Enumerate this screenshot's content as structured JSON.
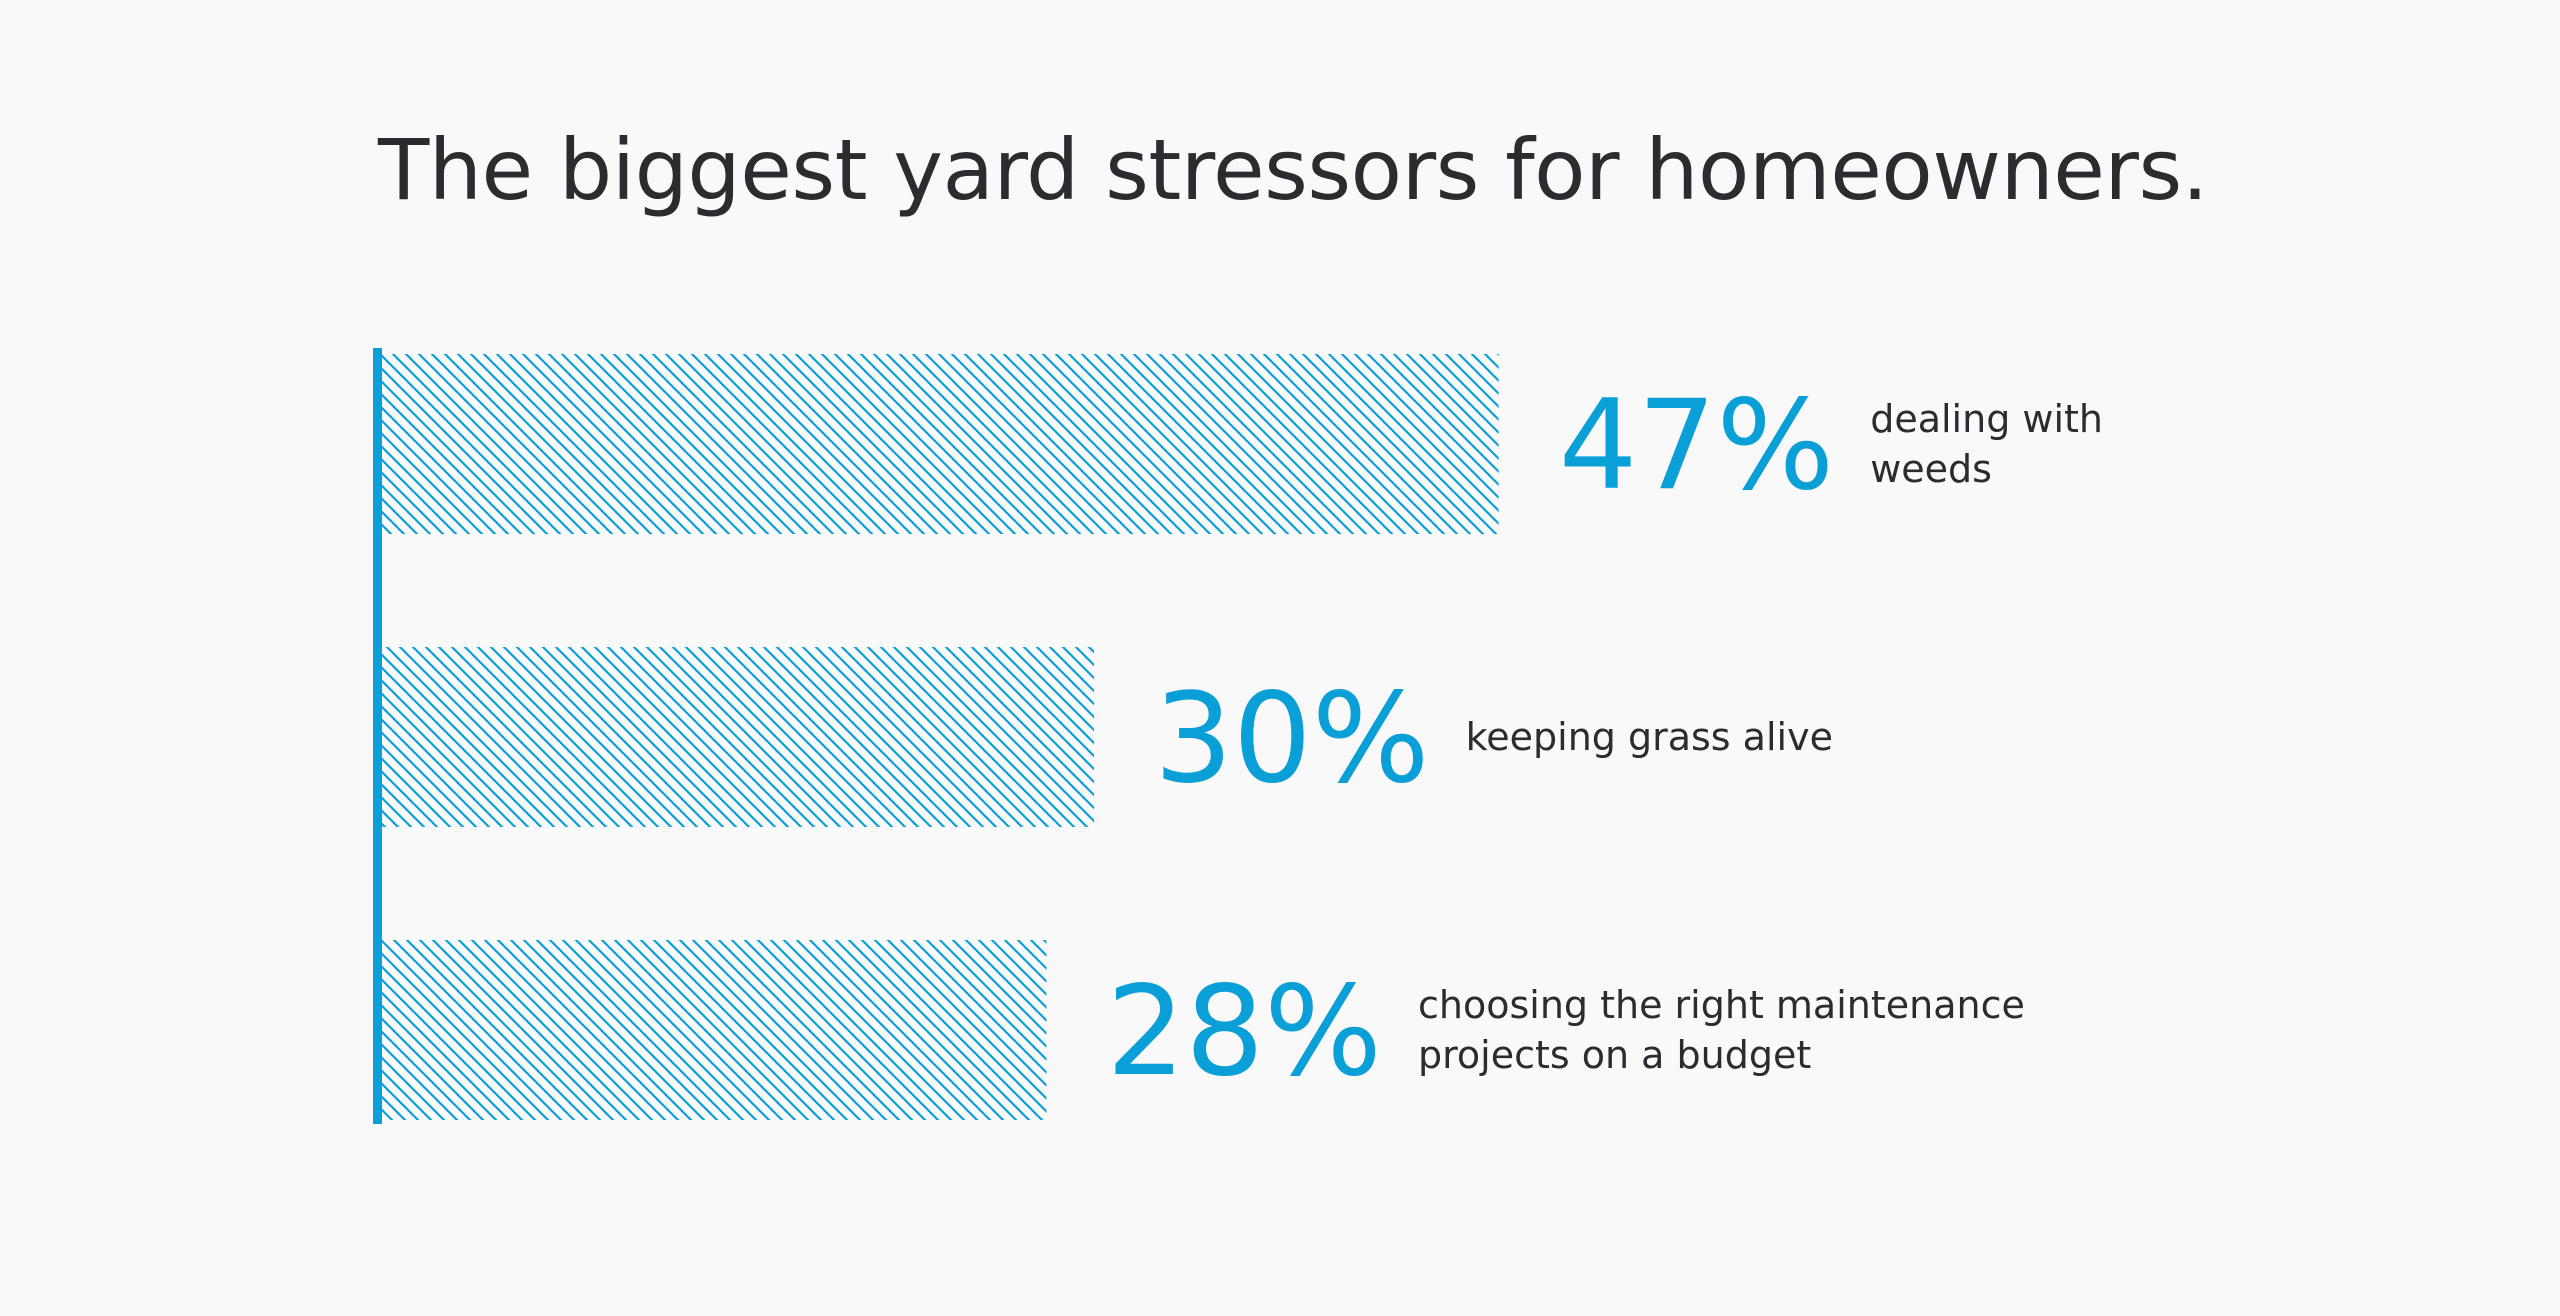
{
  "chart_data": {
    "type": "bar",
    "orientation": "horizontal",
    "title": "The biggest yard stressors for homeowners.",
    "categories": [
      [
        "dealing with",
        "weeds"
      ],
      [
        "keeping grass alive"
      ],
      [
        "choosing the right maintenance",
        "projects on a budget"
      ]
    ],
    "values": [
      47,
      30,
      28
    ],
    "value_labels": [
      "47%",
      "30%",
      "28%"
    ],
    "unit": "%",
    "grid": false,
    "legend": "none",
    "bar_fill": "diagonal-hatch",
    "colors": {
      "accent": "#0b9fd8",
      "text": "#2b2b30",
      "background": "#f9f9f9"
    }
  }
}
